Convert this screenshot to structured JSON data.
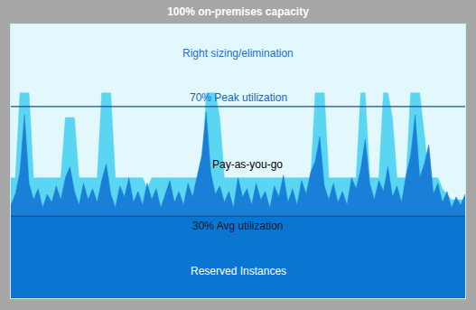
{
  "chart_data": {
    "type": "area",
    "title": "100% on-premises capacity",
    "x": [
      0,
      1,
      2,
      3,
      4,
      5,
      6,
      7,
      8,
      9,
      10,
      11,
      12,
      13,
      14,
      15,
      16,
      17,
      18,
      19,
      20,
      21,
      22,
      23,
      24,
      25,
      26,
      27,
      28,
      29,
      30,
      31,
      32,
      33,
      34,
      35,
      36,
      37,
      38,
      39,
      40,
      41,
      42,
      43,
      44,
      45,
      46,
      47,
      48,
      49,
      50,
      51,
      52,
      53,
      54,
      55,
      56,
      57,
      58,
      59,
      60,
      61,
      62,
      63,
      64,
      65,
      66,
      67,
      68,
      69,
      70,
      71,
      72,
      73,
      74,
      75,
      76,
      77,
      78,
      79,
      80,
      81,
      82,
      83,
      84,
      85,
      86,
      87,
      88,
      89,
      90,
      91,
      92,
      93,
      94,
      95,
      96,
      97,
      98,
      99,
      100
    ],
    "series": [
      {
        "name": "Pay-as-you-go",
        "color": "#5ad6f2",
        "values": [
          44,
          44,
          75,
          75,
          75,
          44,
          44,
          44,
          44,
          44,
          44,
          44,
          66,
          66,
          66,
          44,
          44,
          44,
          44,
          44,
          75,
          75,
          75,
          44,
          44,
          44,
          44,
          44,
          44,
          44,
          40,
          44,
          44,
          44,
          44,
          44,
          44,
          44,
          44,
          44,
          44,
          44,
          44,
          75,
          75,
          75,
          66,
          44,
          44,
          44,
          44,
          44,
          44,
          44,
          44,
          44,
          44,
          44,
          44,
          44,
          44,
          44,
          44,
          44,
          44,
          44,
          44,
          75,
          75,
          75,
          44,
          44,
          44,
          44,
          44,
          44,
          44,
          75,
          75,
          44,
          44,
          44,
          75,
          75,
          66,
          44,
          44,
          44,
          75,
          75,
          75,
          60,
          44,
          44,
          44,
          40,
          38,
          36,
          36,
          36,
          36
        ]
      },
      {
        "color": "#1a7fd6",
        "values": [
          34,
          38,
          46,
          67,
          42,
          36,
          40,
          33,
          38,
          35,
          41,
          36,
          44,
          48,
          39,
          34,
          42,
          36,
          40,
          35,
          43,
          49,
          38,
          33,
          41,
          37,
          44,
          35,
          39,
          34,
          42,
          36,
          40,
          33,
          38,
          43,
          35,
          39,
          34,
          42,
          37,
          45,
          52,
          68,
          46,
          38,
          41,
          35,
          39,
          33,
          44,
          37,
          40,
          34,
          42,
          36,
          39,
          33,
          41,
          37,
          45,
          35,
          40,
          34,
          43,
          38,
          46,
          50,
          59,
          41,
          36,
          42,
          35,
          39,
          34,
          44,
          40,
          47,
          58,
          42,
          36,
          43,
          39,
          48,
          37,
          41,
          35,
          45,
          52,
          67,
          44,
          49,
          56,
          38,
          42,
          35,
          39,
          33,
          37,
          34,
          38
        ]
      }
    ],
    "reference_lines": [
      {
        "value": 70,
        "label": "70% Peak utilization"
      },
      {
        "value": 30,
        "label": "30% Avg utilization"
      }
    ],
    "region_labels": [
      "Right sizing/elimination",
      "Reserved Instances"
    ],
    "xlim": [
      0,
      100
    ],
    "ylim": [
      0,
      100
    ],
    "grid": false,
    "tick_labels": false
  }
}
